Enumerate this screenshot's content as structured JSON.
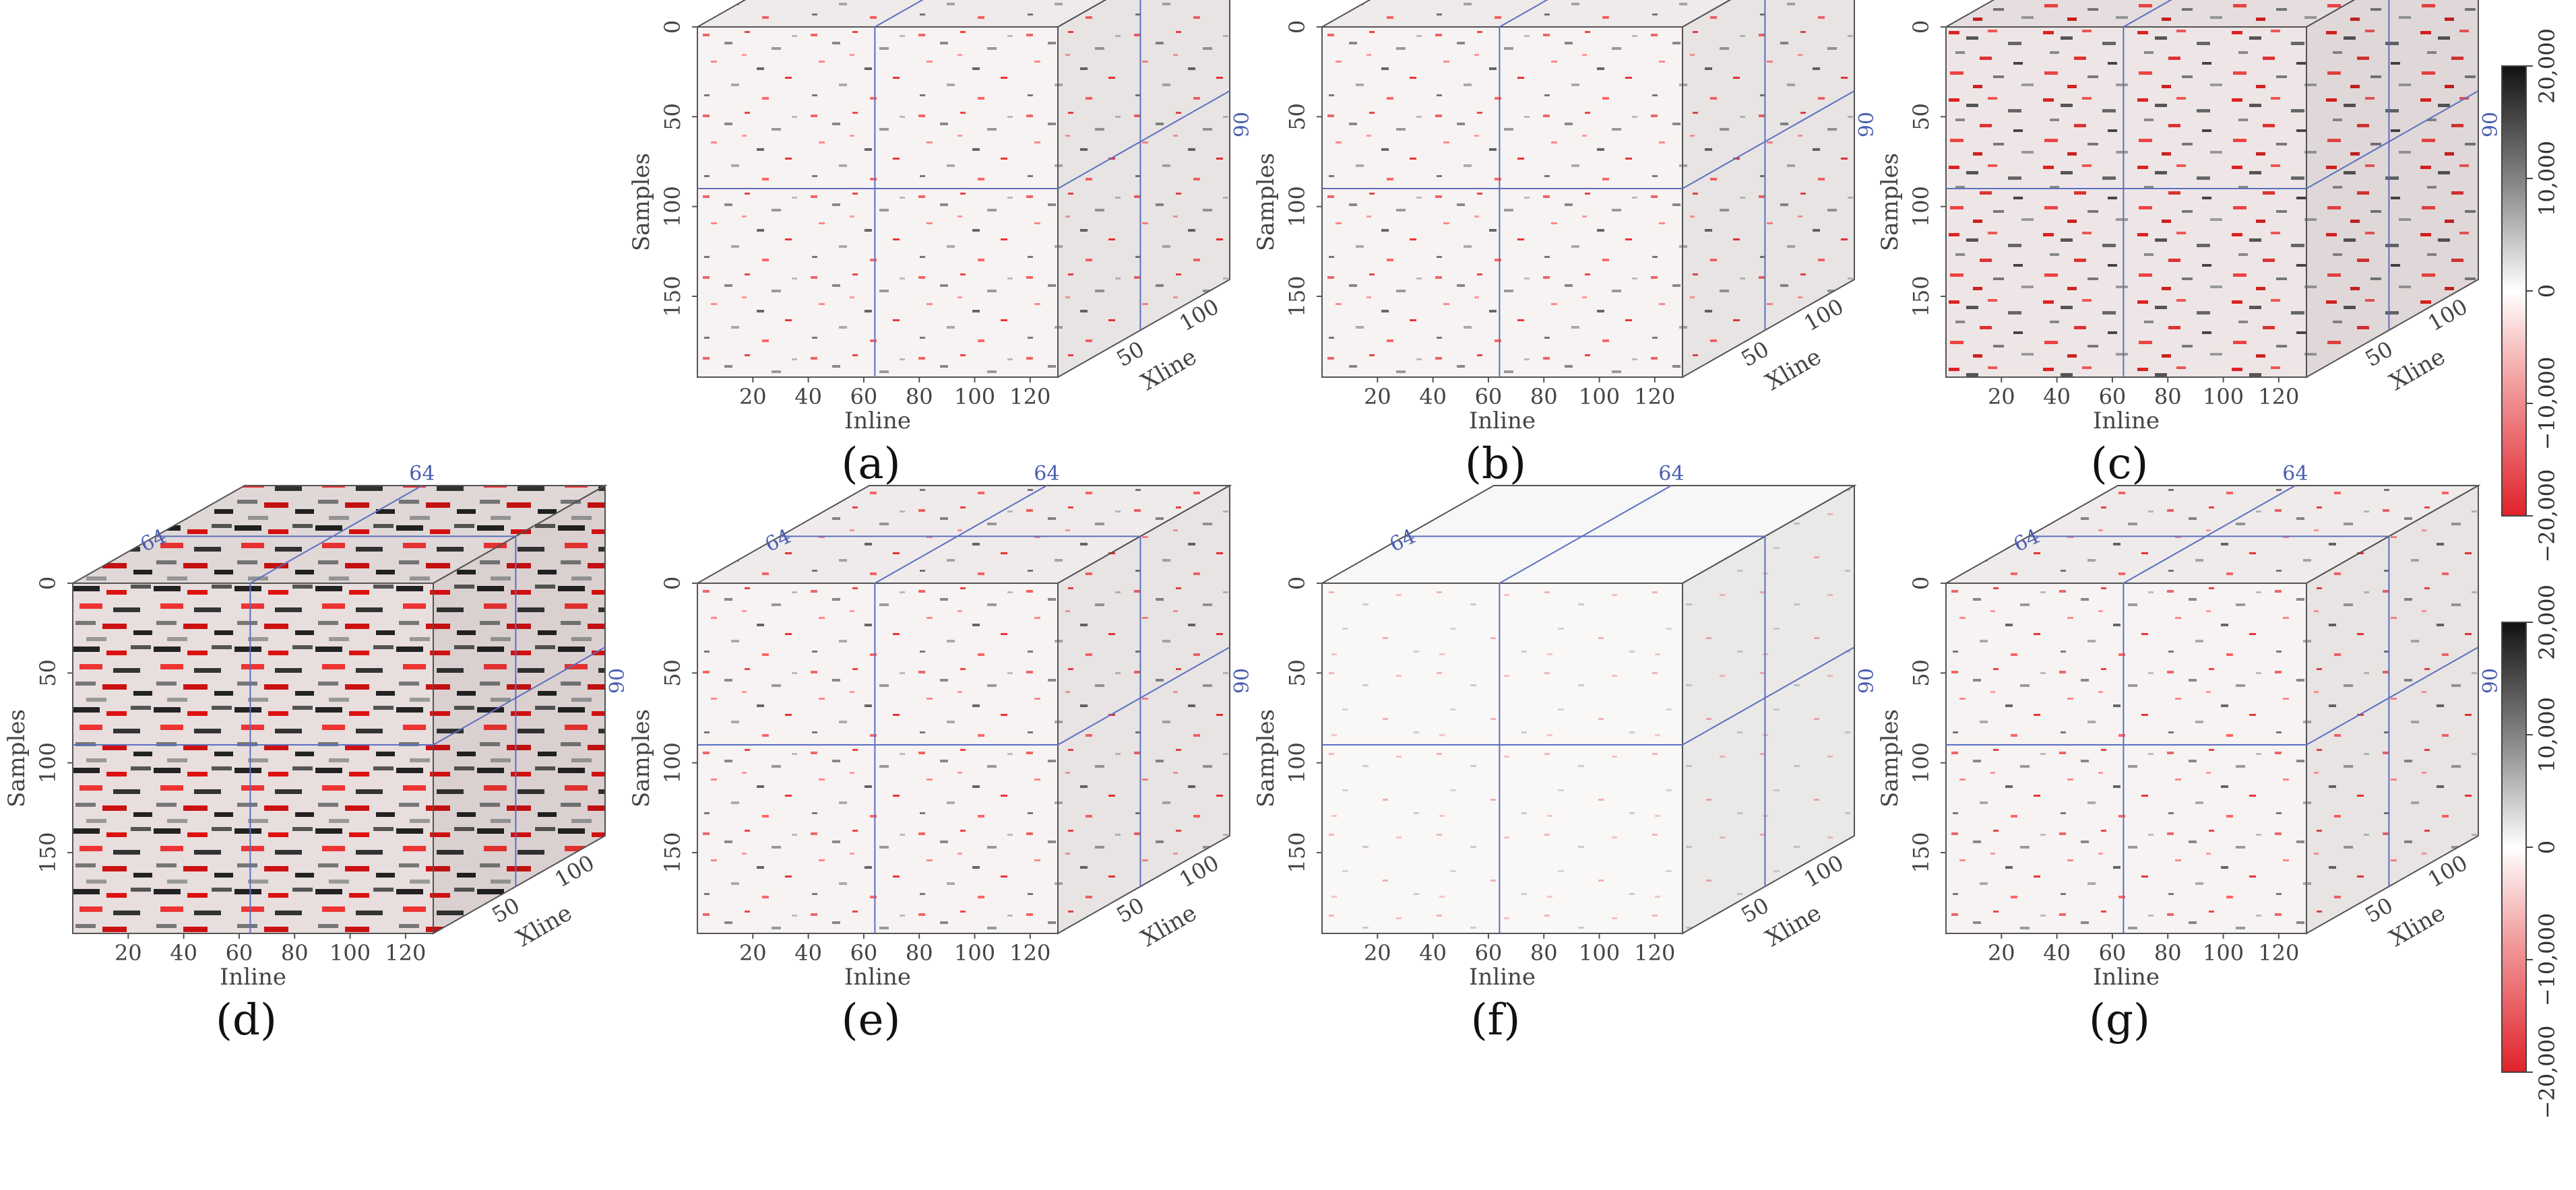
{
  "panels": [
    {
      "id": "a",
      "label": "(a)",
      "style": "noisy"
    },
    {
      "id": "b",
      "label": "(b)",
      "style": "noisy"
    },
    {
      "id": "c",
      "label": "(c)",
      "style": "dense"
    },
    {
      "id": "d",
      "label": "(d)",
      "style": "strong"
    },
    {
      "id": "e",
      "label": "(e)",
      "style": "noisy"
    },
    {
      "id": "f",
      "label": "(f)",
      "style": "faint"
    },
    {
      "id": "g",
      "label": "(g)",
      "style": "noisy"
    }
  ],
  "axes": {
    "samples_label": "Samples",
    "inline_label": "Inline",
    "xline_label": "Xline",
    "samples_ticks": [
      "0",
      "50",
      "100",
      "150"
    ],
    "inline_ticks": [
      "20",
      "40",
      "60",
      "80",
      "100",
      "120"
    ],
    "xline_ticks": [
      "50",
      "100"
    ]
  },
  "slice_markers": {
    "inline": "64",
    "xline": "64",
    "sample": "90"
  },
  "colorbar": {
    "ticks": [
      "20,000",
      "10,000",
      "0",
      "−10,000",
      "−20,000"
    ],
    "colors": {
      "positive": "#111111",
      "zero": "#ffffff",
      "negative": "#e0222b"
    }
  },
  "colors": {
    "slice_lines": "#5b6fc0",
    "cube_edges": "#555555"
  }
}
